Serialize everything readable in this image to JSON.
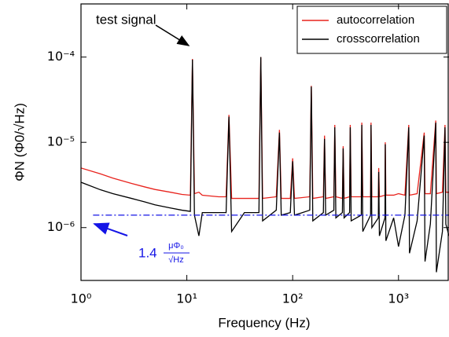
{
  "chart_data": {
    "type": "line",
    "xlabel": "Frequency (Hz)",
    "ylabel": "ΦN (Φ0/√Hz)",
    "log_x": true,
    "log_y": true,
    "xlim": [
      1,
      3000
    ],
    "ylim": [
      2.4e-07,
      0.00042
    ],
    "xticks": [
      {
        "value": 1,
        "label": "10⁰"
      },
      {
        "value": 10,
        "label": "10¹"
      },
      {
        "value": 100,
        "label": "10²"
      },
      {
        "value": 1000,
        "label": "10³"
      }
    ],
    "yticks": [
      {
        "value": 1e-06,
        "label": "10⁻⁶"
      },
      {
        "value": 1e-05,
        "label": "10⁻⁵"
      },
      {
        "value": 0.0001,
        "label": "10⁻⁴"
      }
    ],
    "legend": "upper right",
    "x": [
      1,
      1.5,
      2,
      3,
      4,
      5,
      7,
      9,
      10.8,
      11.3,
      11.8,
      13,
      14,
      20,
      23.5,
      25,
      26.5,
      35,
      48,
      50,
      52,
      70,
      75,
      78,
      95,
      100,
      104,
      145,
      150,
      155,
      195,
      200,
      205,
      245,
      250,
      256,
      295,
      300,
      306,
      345,
      350,
      357,
      445,
      450,
      460,
      545,
      550,
      560,
      645,
      650,
      660,
      745,
      750,
      760,
      900,
      1000,
      1150,
      1250,
      1270,
      1500,
      1750,
      1780,
      2000,
      2250,
      2280,
      2600,
      2750,
      2800,
      3000
    ],
    "series": [
      {
        "name": "autocorrelation",
        "color": "#e8231d",
        "values": [
          5e-06,
          4.3e-06,
          3.8e-06,
          3.3e-06,
          3e-06,
          2.8e-06,
          2.6e-06,
          2.45e-06,
          2.4e-06,
          9.5e-05,
          2.5e-06,
          2.6e-06,
          2.4e-06,
          2.3e-06,
          2.3e-06,
          2.1e-05,
          2.2e-06,
          2.2e-06,
          2.2e-06,
          0.0001,
          2.2e-06,
          2.3e-06,
          1.4e-05,
          2.2e-06,
          2.2e-06,
          6.5e-06,
          2.2e-06,
          2.3e-06,
          4.6e-05,
          2.2e-06,
          2.3e-06,
          1.2e-05,
          2.2e-06,
          2.3e-06,
          1.6e-05,
          2.3e-06,
          2.2e-06,
          9e-06,
          2.2e-06,
          2.3e-06,
          1.6e-05,
          2.3e-06,
          2.3e-06,
          1.7e-05,
          2.3e-06,
          2.3e-06,
          1.7e-05,
          2.3e-06,
          2.3e-06,
          5e-06,
          2.3e-06,
          2.4e-06,
          1e-05,
          2.4e-06,
          2.4e-06,
          2.5e-06,
          2.4e-06,
          1.6e-05,
          2.4e-06,
          2.5e-06,
          1.3e-05,
          2.5e-06,
          2.5e-06,
          1.8e-05,
          2.5e-06,
          2.6e-06,
          1.6e-05,
          2.6e-06,
          2.6e-06
        ]
      },
      {
        "name": "crosscorrelation",
        "color": "#000000",
        "values": [
          3.4e-06,
          2.8e-06,
          2.5e-06,
          2.2e-06,
          2e-06,
          1.85e-06,
          1.7e-06,
          1.6e-06,
          1.55e-06,
          9.3e-05,
          1.4e-06,
          8e-07,
          1.5e-06,
          1.5e-06,
          1.5e-06,
          2e-05,
          9e-07,
          1.5e-06,
          1.5e-06,
          0.0001,
          1.2e-06,
          1.6e-06,
          1.3e-05,
          1.4e-06,
          1.5e-06,
          6e-06,
          1.4e-06,
          1.6e-06,
          4.5e-05,
          1.2e-06,
          1.5e-06,
          1.1e-05,
          1.4e-06,
          1.6e-06,
          1.5e-05,
          1.3e-06,
          1.5e-06,
          8.5e-06,
          1.3e-06,
          1.5e-06,
          1.5e-05,
          1.2e-06,
          1.4e-06,
          1.6e-05,
          9e-07,
          1.4e-06,
          1.6e-05,
          1e-06,
          1.3e-06,
          4.5e-06,
          8e-07,
          1.3e-06,
          9.5e-06,
          7e-07,
          1.3e-06,
          6e-07,
          1.4e-06,
          1.5e-05,
          5e-07,
          1.2e-06,
          1.2e-05,
          4e-07,
          1.1e-06,
          1.7e-05,
          3e-07,
          9e-07,
          1.5e-05,
          1.1e-06,
          8e-07
        ]
      }
    ],
    "annotations": [
      {
        "text": "test signal"
      }
    ],
    "hline": {
      "value": 1.4e-06,
      "x": [
        1.3,
        3000
      ],
      "color": "#1414e6",
      "label": "1.4",
      "unit_numerator": "μΦ₀",
      "unit_denominator": "√Hz"
    }
  }
}
